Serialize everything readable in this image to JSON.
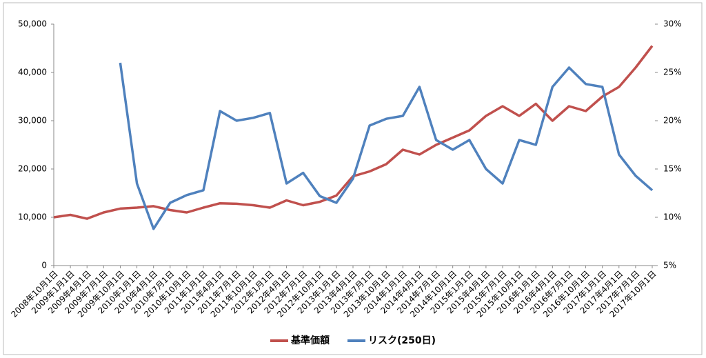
{
  "chart_data": {
    "type": "line",
    "categories": [
      "2008年10月1日",
      "2009年1月1日",
      "2009年4月1日",
      "2009年7月1日",
      "2009年10月1日",
      "2010年1月1日",
      "2010年4月1日",
      "2010年7月1日",
      "2010年10月1日",
      "2011年1月1日",
      "2011年4月1日",
      "2011年7月1日",
      "2011年10月1日",
      "2012年1月1日",
      "2012年4月1日",
      "2012年7月1日",
      "2012年10月1日",
      "2013年1月1日",
      "2013年4月1日",
      "2013年7月1日",
      "2013年10月1日",
      "2014年1月1日",
      "2014年4月1日",
      "2014年7月1日",
      "2014年10月1日",
      "2015年1月1日",
      "2015年4月1日",
      "2015年7月1日",
      "2015年10月1日",
      "2016年1月1日",
      "2016年4月1日",
      "2016年7月1日",
      "2016年10月1日",
      "2017年1月1日",
      "2017年4月1日",
      "2017年7月1日",
      "2017年10月1日"
    ],
    "series": [
      {
        "name": "基準価額",
        "color": "#c0504d",
        "values": [
          10000,
          10500,
          9700,
          11000,
          11800,
          12000,
          12300,
          11500,
          11000,
          12000,
          12900,
          12800,
          12500,
          12000,
          13500,
          12500,
          13200,
          14500,
          18500,
          19500,
          21000,
          24000,
          23000,
          25000,
          26500,
          28000,
          31000,
          33000,
          31000,
          33500,
          30000,
          33000,
          32000,
          35000,
          37000,
          41000,
          45500
        ]
      },
      {
        "name": "リスク(250日)",
        "color": "#4f81bd",
        "axis": "y2",
        "values": [
          null,
          null,
          null,
          null,
          26,
          13.5,
          8.8,
          11.5,
          12.3,
          12.8,
          21,
          20,
          20.3,
          20.8,
          13.5,
          14.6,
          12.2,
          11.5,
          14,
          19.5,
          20.2,
          20.5,
          23.5,
          18,
          17,
          18,
          15,
          13.5,
          18,
          17.5,
          23.5,
          25.5,
          23.8,
          23.5,
          16.5,
          14.3,
          12.8
        ]
      }
    ],
    "ylim": [
      0,
      50000
    ],
    "yticks": [
      0,
      {
        "value": 10000,
        "label": "10,000"
      },
      {
        "value": 20000,
        "label": "20,000"
      },
      {
        "value": 30000,
        "label": "30,000"
      },
      {
        "value": 40000,
        "label": "40,000"
      },
      {
        "value": 50000,
        "label": "50,000"
      }
    ],
    "y2lim": [
      5,
      30
    ],
    "y2ticks": [
      {
        "value": 5,
        "label": "5%"
      },
      {
        "value": 10,
        "label": "10%"
      },
      {
        "value": 15,
        "label": "15%"
      },
      {
        "value": 20,
        "label": "20%"
      },
      {
        "value": 25,
        "label": "25%"
      },
      {
        "value": 30,
        "label": "30%"
      }
    ],
    "legend": "bottom"
  }
}
